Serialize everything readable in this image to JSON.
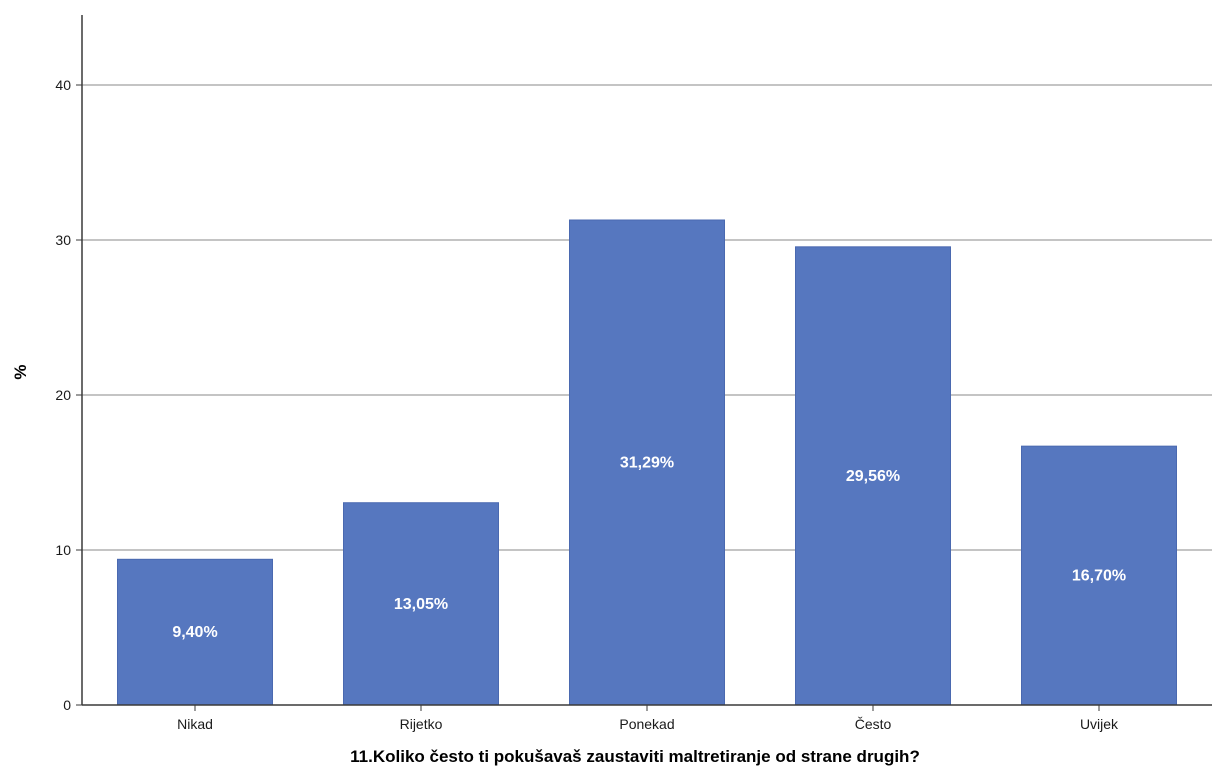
{
  "chart_data": {
    "type": "bar",
    "categories": [
      "Nikad",
      "Rijetko",
      "Ponekad",
      "Često",
      "Uvijek"
    ],
    "values": [
      9.4,
      13.05,
      31.29,
      29.56,
      16.7
    ],
    "data_labels": [
      "9,40%",
      "13,05%",
      "31,29%",
      "29,56%",
      "16,70%"
    ],
    "xlabel": "11.Koliko često ti pokušavaš zaustaviti maltretiranje od strane drugih?",
    "ylabel": "%",
    "ylim": [
      0,
      40
    ],
    "yticks": [
      0,
      10,
      20,
      30,
      40
    ],
    "grid": true,
    "bar_color": "#5677BF",
    "grid_color": "#b0b0b0",
    "axis_color": "#3a3a3a"
  }
}
